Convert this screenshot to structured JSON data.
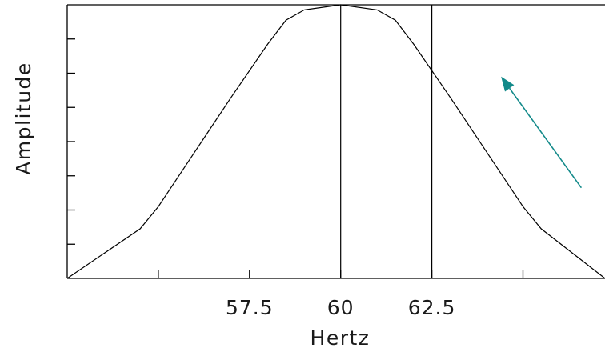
{
  "chart_data": {
    "type": "line",
    "title": "",
    "xlabel": "Hertz",
    "ylabel": "Amplitude",
    "xlim": [
      52.5,
      67.25
    ],
    "ylim": [
      0,
      8
    ],
    "x_ticks": [
      55,
      57.5,
      60,
      62.5,
      65
    ],
    "x_tick_labels": [
      "57.5",
      "60",
      "62.5"
    ],
    "y_ticks": [
      1,
      2,
      3,
      4,
      5,
      6,
      7
    ],
    "grid": false,
    "legend": "none",
    "vertical_lines": [
      60,
      62.5
    ],
    "series": [
      {
        "values_xy": [
          [
            52.5,
            0.0
          ],
          [
            54.5,
            1.45
          ],
          [
            55.0,
            2.1
          ],
          [
            56.0,
            3.7
          ],
          [
            57.0,
            5.3
          ],
          [
            58.0,
            6.85
          ],
          [
            58.5,
            7.55
          ],
          [
            59.0,
            7.85
          ],
          [
            60.0,
            8.0
          ],
          [
            61.0,
            7.85
          ],
          [
            61.5,
            7.55
          ],
          [
            62.0,
            6.85
          ],
          [
            63.0,
            5.3
          ],
          [
            64.0,
            3.7
          ],
          [
            65.0,
            2.1
          ],
          [
            65.5,
            1.45
          ],
          [
            67.25,
            0.0
          ]
        ]
      }
    ],
    "annotation_arrow": {
      "from": [
        66.6,
        2.65
      ],
      "to": [
        64.4,
        5.9
      ],
      "color": "#138a8a"
    }
  }
}
